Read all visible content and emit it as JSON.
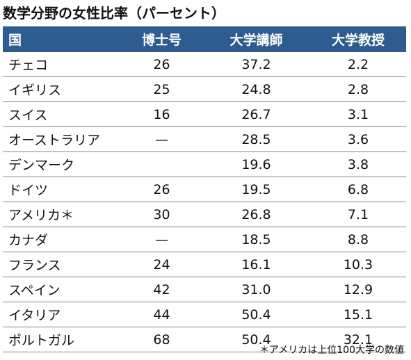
{
  "title": "数学分野の女性比率（パーセント）",
  "table": {
    "headers": {
      "country": "国",
      "phd": "博士号",
      "lecturer": "大学講師",
      "professor": "大学教授"
    },
    "rows": [
      {
        "country": "チェコ",
        "phd": "26",
        "lecturer": "37.2",
        "professor": "2.2"
      },
      {
        "country": "イギリス",
        "phd": "25",
        "lecturer": "24.8",
        "professor": "2.8"
      },
      {
        "country": "スイス",
        "phd": "16",
        "lecturer": "26.7",
        "professor": "3.1"
      },
      {
        "country": "オーストラリア",
        "phd": "—",
        "lecturer": "28.5",
        "professor": "3.6"
      },
      {
        "country": "デンマーク",
        "phd": "",
        "lecturer": "19.6",
        "professor": "3.8"
      },
      {
        "country": "ドイツ",
        "phd": "26",
        "lecturer": "19.5",
        "professor": "6.8"
      },
      {
        "country": "アメリカ＊",
        "phd": "30",
        "lecturer": "26.8",
        "professor": "7.1"
      },
      {
        "country": "カナダ",
        "phd": "—",
        "lecturer": "18.5",
        "professor": "8.8"
      },
      {
        "country": "フランス",
        "phd": "24",
        "lecturer": "16.1",
        "professor": "10.3"
      },
      {
        "country": "スペイン",
        "phd": "42",
        "lecturer": "31.0",
        "professor": "12.9"
      },
      {
        "country": "イタリア",
        "phd": "44",
        "lecturer": "50.4",
        "professor": "15.1"
      },
      {
        "country": "ポルトガル",
        "phd": "68",
        "lecturer": "50.4",
        "professor": "32.1"
      }
    ]
  },
  "footnote": "＊アメリカは上位100大学の数値",
  "colors": {
    "header_background": "#2f5c8f",
    "header_text": "#ffffff",
    "row_divider": "#6e86a8"
  }
}
